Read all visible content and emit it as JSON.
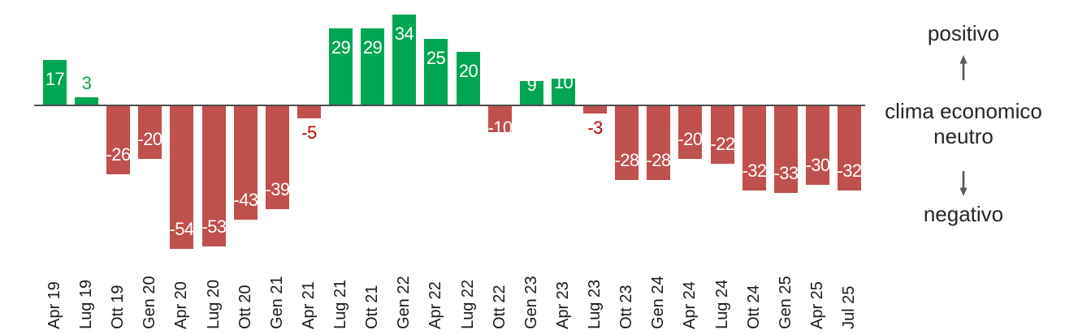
{
  "chart_data": {
    "type": "bar",
    "title": "",
    "xlabel": "",
    "ylabel": "",
    "categories": [
      "Apr 19",
      "Lug 19",
      "Ott 19",
      "Gen 20",
      "Apr 20",
      "Lug 20",
      "Ott 20",
      "Gen 21",
      "Apr 21",
      "Lug 21",
      "Ott 21",
      "Gen 22",
      "Apr 22",
      "Lug 22",
      "Ott 22",
      "Gen 23",
      "Apr 23",
      "Lug 23",
      "Ott 23",
      "Gen 24",
      "Apr 24",
      "Lug 24",
      "Ott 24",
      "Gen 25",
      "Apr 25",
      "Jul 25"
    ],
    "values": [
      17,
      3,
      -26,
      -20,
      -54,
      -53,
      -43,
      -39,
      -5,
      29,
      29,
      34,
      25,
      20,
      -10,
      9,
      10,
      -3,
      -28,
      -28,
      -20,
      -22,
      -32,
      -33,
      -30,
      -32
    ],
    "ylim": [
      -60,
      40
    ],
    "grid": false,
    "legend_position": "right",
    "colors": {
      "positive_bar": "#00A651",
      "negative_bar": "#C0504D",
      "label_inside": "#FFFFFF",
      "label_outside_positive": "#00A651",
      "label_outside_negative": "#C00000",
      "axis_line": "#4D4D4D",
      "arrow": "#595959",
      "text": "#262626"
    }
  },
  "legend": {
    "positive": "positivo",
    "neutral_line1": "clima economico",
    "neutral_line2": "neutro",
    "negative": "negativo"
  }
}
